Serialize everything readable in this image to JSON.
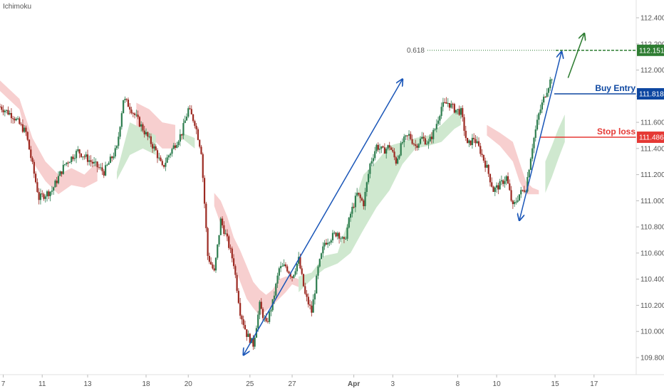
{
  "indicator_label": "Ichimoku",
  "colors": {
    "bull": "#2e7d4f",
    "bear": "#9c2a22",
    "cloud_bull": "#cfe8cf",
    "cloud_bear": "#f7cfcf",
    "trend_arrow": "#1a56b8",
    "target_arrow": "#2e7d32",
    "buy_entry": "#0d47a1",
    "stop_loss": "#e53935",
    "target": "#2e7d32",
    "axis_text": "#555555"
  },
  "chart_data": {
    "type": "candlestick",
    "title": "",
    "indicator": "Ichimoku",
    "x_tick_labels": [
      "7",
      "11",
      "13",
      "18",
      "20",
      "25",
      "27",
      "Apr",
      "3",
      "8",
      "10",
      "15",
      "17"
    ],
    "y_tick_labels": [
      "109.800",
      "110.000",
      "110.200",
      "110.400",
      "110.600",
      "110.800",
      "111.000",
      "111.200",
      "111.400",
      "111.600",
      "111.800",
      "112.000",
      "112.200",
      "112.400"
    ],
    "ylim": [
      109.75,
      112.52
    ],
    "price_path": [
      [
        0,
        111.72
      ],
      [
        4,
        111.65
      ],
      [
        8,
        111.52
      ],
      [
        12,
        111.02
      ],
      [
        16,
        111.08
      ],
      [
        20,
        111.28
      ],
      [
        24,
        111.38
      ],
      [
        28,
        111.3
      ],
      [
        32,
        111.22
      ],
      [
        36,
        111.4
      ],
      [
        38,
        111.78
      ],
      [
        40,
        111.72
      ],
      [
        44,
        111.55
      ],
      [
        48,
        111.38
      ],
      [
        50,
        111.25
      ],
      [
        52,
        111.35
      ],
      [
        56,
        111.52
      ],
      [
        58,
        111.7
      ],
      [
        60,
        111.6
      ],
      [
        62,
        111.38
      ],
      [
        64,
        110.58
      ],
      [
        66,
        110.45
      ],
      [
        68,
        110.85
      ],
      [
        70,
        110.7
      ],
      [
        72,
        110.52
      ],
      [
        74,
        110.15
      ],
      [
        76,
        109.98
      ],
      [
        78,
        109.9
      ],
      [
        80,
        110.2
      ],
      [
        82,
        110.05
      ],
      [
        84,
        110.22
      ],
      [
        86,
        110.48
      ],
      [
        88,
        110.5
      ],
      [
        90,
        110.42
      ],
      [
        92,
        110.55
      ],
      [
        94,
        110.28
      ],
      [
        96,
        110.15
      ],
      [
        98,
        110.48
      ],
      [
        100,
        110.68
      ],
      [
        102,
        110.72
      ],
      [
        104,
        110.76
      ],
      [
        106,
        110.68
      ],
      [
        108,
        110.9
      ],
      [
        110,
        111.05
      ],
      [
        112,
        110.98
      ],
      [
        114,
        111.28
      ],
      [
        116,
        111.42
      ],
      [
        118,
        111.38
      ],
      [
        120,
        111.42
      ],
      [
        122,
        111.3
      ],
      [
        124,
        111.45
      ],
      [
        126,
        111.5
      ],
      [
        128,
        111.42
      ],
      [
        130,
        111.48
      ],
      [
        132,
        111.44
      ],
      [
        134,
        111.55
      ],
      [
        136,
        111.72
      ],
      [
        138,
        111.75
      ],
      [
        140,
        111.7
      ],
      [
        142,
        111.68
      ],
      [
        144,
        111.42
      ],
      [
        146,
        111.48
      ],
      [
        148,
        111.38
      ],
      [
        150,
        111.25
      ],
      [
        152,
        111.08
      ],
      [
        154,
        111.12
      ],
      [
        156,
        111.18
      ],
      [
        158,
        110.95
      ],
      [
        160,
        111.05
      ],
      [
        162,
        111.1
      ],
      [
        164,
        111.42
      ],
      [
        166,
        111.66
      ],
      [
        168,
        111.82
      ],
      [
        170,
        111.95
      ]
    ],
    "cloud": {
      "bear_spans": [
        [
          [
            0,
            111.92,
            111.84
          ],
          [
            6,
            111.78,
            111.7
          ],
          [
            10,
            111.48,
            111.3
          ],
          [
            14,
            111.3,
            111.15
          ],
          [
            18,
            111.2,
            111.05
          ],
          [
            22,
            111.25,
            111.12
          ],
          [
            26,
            111.2,
            111.1
          ],
          [
            30,
            111.3,
            111.15
          ]
        ],
        [
          [
            42,
            111.75,
            111.55
          ],
          [
            46,
            111.7,
            111.5
          ],
          [
            50,
            111.6,
            111.4
          ],
          [
            54,
            111.58,
            111.4
          ]
        ],
        [
          [
            66,
            111.06,
            110.96
          ],
          [
            68,
            111.0,
            110.82
          ],
          [
            70,
            110.88,
            110.7
          ],
          [
            72,
            110.72,
            110.52
          ],
          [
            74,
            110.62,
            110.38
          ],
          [
            76,
            110.5,
            110.25
          ],
          [
            78,
            110.38,
            110.18
          ],
          [
            80,
            110.32,
            110.12
          ],
          [
            82,
            110.28,
            110.16
          ],
          [
            84,
            110.32,
            110.2
          ],
          [
            86,
            110.4,
            110.25
          ],
          [
            88,
            110.42,
            110.3
          ],
          [
            90,
            110.42,
            110.36
          ],
          [
            92,
            110.4,
            110.34
          ]
        ],
        [
          [
            150,
            111.58,
            111.5
          ],
          [
            154,
            111.52,
            111.42
          ],
          [
            158,
            111.45,
            111.3
          ],
          [
            160,
            111.3,
            111.15
          ],
          [
            162,
            111.15,
            111.05
          ],
          [
            164,
            111.1,
            111.05
          ],
          [
            166,
            111.08,
            111.05
          ]
        ]
      ],
      "bull_spans": [
        [
          [
            36,
            111.22,
            111.16
          ],
          [
            40,
            111.6,
            111.35
          ],
          [
            44,
            111.55,
            111.4
          ],
          [
            48,
            111.5,
            111.35
          ]
        ],
        [
          [
            56,
            111.52,
            111.48
          ],
          [
            60,
            111.48,
            111.4
          ]
        ],
        [
          [
            92,
            110.42,
            110.3
          ],
          [
            96,
            110.45,
            110.4
          ],
          [
            100,
            110.58,
            110.48
          ],
          [
            104,
            110.6,
            110.52
          ],
          [
            108,
            110.9,
            110.6
          ],
          [
            112,
            111.2,
            110.78
          ],
          [
            116,
            111.3,
            110.95
          ],
          [
            120,
            111.42,
            111.08
          ],
          [
            124,
            111.45,
            111.28
          ],
          [
            128,
            111.48,
            111.4
          ],
          [
            132,
            111.5,
            111.42
          ],
          [
            136,
            111.58,
            111.45
          ],
          [
            140,
            111.68,
            111.55
          ],
          [
            142,
            111.7,
            111.58
          ]
        ],
        [
          [
            168,
            111.06,
            111.3
          ],
          [
            170,
            111.18,
            111.42
          ],
          [
            172,
            111.32,
            111.55
          ],
          [
            174,
            111.45,
            111.66
          ]
        ]
      ]
    },
    "annotations": {
      "fib": {
        "label": "0.618",
        "value": 112.151
      },
      "target": {
        "label": "112.151",
        "value": 112.151
      },
      "buy_entry": {
        "label": "Buy Entry",
        "value": 111.818,
        "price_label": "111.818"
      },
      "stop_loss": {
        "label": "Stop loss",
        "value": 111.486,
        "price_label": "111.486"
      }
    },
    "arrows": [
      {
        "from": [
          75,
          109.82
        ],
        "to": [
          124,
          111.93
        ],
        "style": "trend"
      },
      {
        "from": [
          160,
          110.85
        ],
        "to": [
          173,
          112.14
        ],
        "style": "trend-double"
      },
      {
        "from": [
          175,
          111.94
        ],
        "to": [
          180,
          112.28
        ],
        "style": "target"
      }
    ],
    "x_range": [
      0,
      196
    ],
    "x_tick_positions": [
      1,
      13,
      27,
      45,
      58,
      77,
      90,
      109,
      121,
      141,
      153,
      171,
      183
    ]
  }
}
